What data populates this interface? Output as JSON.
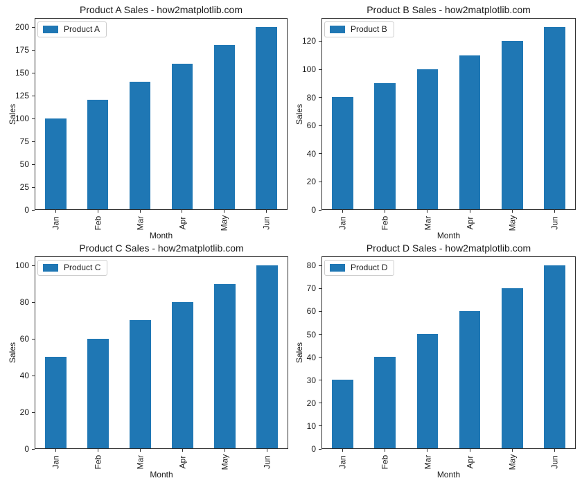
{
  "figure": {
    "background": "#ffffff",
    "bar_color": "#1f77b4",
    "spine_color": "#2e2e2e",
    "layout": "2x2 grid of bar subplots"
  },
  "chart_data": [
    {
      "type": "bar",
      "title": "Product A Sales - how2matplotlib.com",
      "xlabel": "Month",
      "ylabel": "Sales",
      "legend": {
        "label": "Product A",
        "position": "upper left"
      },
      "categories": [
        "Jan",
        "Feb",
        "Mar",
        "Apr",
        "May",
        "Jun"
      ],
      "values": [
        100,
        120,
        140,
        160,
        180,
        200
      ],
      "yticks": [
        0,
        25,
        50,
        75,
        100,
        125,
        150,
        175,
        200
      ],
      "ylim": [
        0,
        210
      ],
      "bar_color": "#1f77b4",
      "grid": false
    },
    {
      "type": "bar",
      "title": "Product B Sales - how2matplotlib.com",
      "xlabel": "Month",
      "ylabel": "Sales",
      "legend": {
        "label": "Product B",
        "position": "upper left"
      },
      "categories": [
        "Jan",
        "Feb",
        "Mar",
        "Apr",
        "May",
        "Jun"
      ],
      "values": [
        80,
        90,
        100,
        110,
        120,
        130
      ],
      "yticks": [
        0,
        20,
        40,
        60,
        80,
        100,
        120
      ],
      "ylim": [
        0,
        136.5
      ],
      "bar_color": "#1f77b4",
      "grid": false
    },
    {
      "type": "bar",
      "title": "Product C Sales - how2matplotlib.com",
      "xlabel": "Month",
      "ylabel": "Sales",
      "legend": {
        "label": "Product C",
        "position": "upper left"
      },
      "categories": [
        "Jan",
        "Feb",
        "Mar",
        "Apr",
        "May",
        "Jun"
      ],
      "values": [
        50,
        60,
        70,
        80,
        90,
        100
      ],
      "yticks": [
        0,
        20,
        40,
        60,
        80,
        100
      ],
      "ylim": [
        0,
        105
      ],
      "bar_color": "#1f77b4",
      "grid": false
    },
    {
      "type": "bar",
      "title": "Product D Sales - how2matplotlib.com",
      "xlabel": "Month",
      "ylabel": "Sales",
      "legend": {
        "label": "Product D",
        "position": "upper left"
      },
      "categories": [
        "Jan",
        "Feb",
        "Mar",
        "Apr",
        "May",
        "Jun"
      ],
      "values": [
        30,
        40,
        50,
        60,
        70,
        80
      ],
      "yticks": [
        0,
        10,
        20,
        30,
        40,
        50,
        60,
        70,
        80
      ],
      "ylim": [
        0,
        84
      ],
      "bar_color": "#1f77b4",
      "grid": false
    }
  ]
}
